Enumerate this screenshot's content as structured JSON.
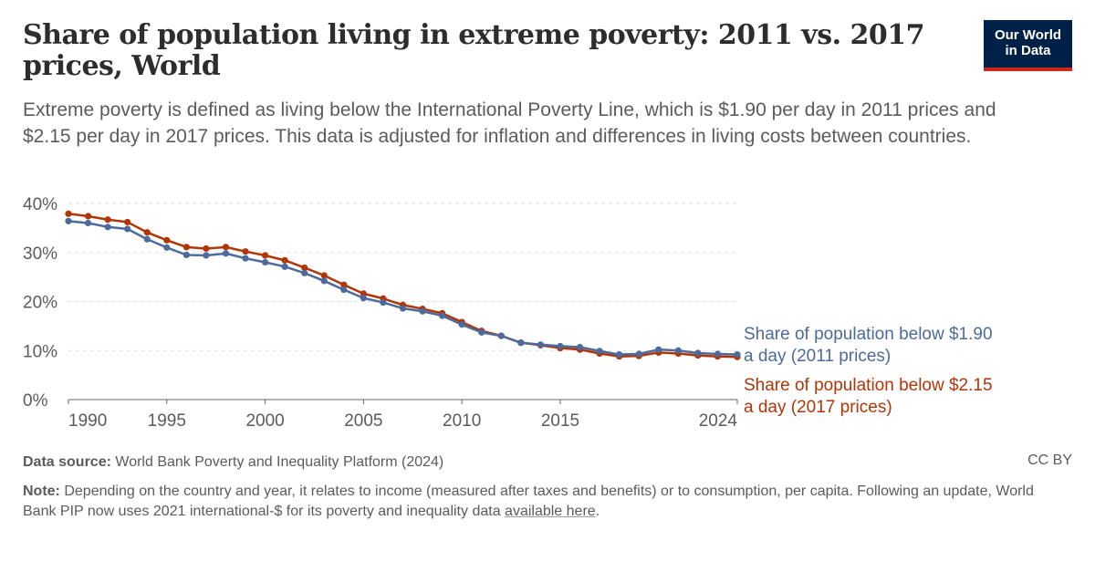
{
  "header": {
    "title": "Share of population living in extreme poverty: 2011 vs. 2017 prices, World",
    "subtitle": "Extreme poverty is defined as living below the International Poverty Line, which is $1.90 per day in 2011 prices and $2.15 per day in 2017 prices. This data is adjusted for inflation and differences in living costs between countries.",
    "logo_line1": "Our World",
    "logo_line2": "in Data"
  },
  "footer": {
    "source_label": "Data source:",
    "source_text": "World Bank Poverty and Inequality Platform (2024)",
    "license": "CC BY",
    "note_label": "Note:",
    "note_text": "Depending on the country and year, it relates to income (measured after taxes and benefits) or to consumption, per capita. Following an update, World Bank PIP now uses 2021 international-$ for its poverty and inequality data",
    "note_link": "available here",
    "note_end": "."
  },
  "chart_data": {
    "type": "line",
    "title": "Share of population living in extreme poverty: 2011 vs. 2017 prices, World",
    "xlim": [
      1990,
      2024
    ],
    "ylim": [
      0,
      40
    ],
    "x_ticks": [
      1990,
      1995,
      2000,
      2005,
      2010,
      2015,
      2024
    ],
    "y_ticks": [
      0,
      10,
      20,
      30,
      40
    ],
    "y_tick_labels": [
      "0%",
      "10%",
      "20%",
      "30%",
      "40%"
    ],
    "grid": "horizontal dashed",
    "legend_placement": "right (inline labels)",
    "colors": {
      "series_2011": "#4c6a9c",
      "series_2017": "#b13507",
      "grid": "#dddddd",
      "axis": "#666666"
    },
    "x": [
      1990,
      1991,
      1992,
      1993,
      1994,
      1995,
      1996,
      1997,
      1998,
      1999,
      2000,
      2001,
      2002,
      2003,
      2004,
      2005,
      2006,
      2007,
      2008,
      2009,
      2010,
      2011,
      2012,
      2013,
      2014,
      2015,
      2016,
      2017,
      2018,
      2019,
      2020,
      2021,
      2022,
      2023,
      2024
    ],
    "series": [
      {
        "name": "Share of population below $2.15 a day (2017 prices)",
        "color": "#b13507",
        "values": [
          37.9,
          37.4,
          36.7,
          36.2,
          34.1,
          32.5,
          31.1,
          30.8,
          31.1,
          30.2,
          29.4,
          28.4,
          26.9,
          25.3,
          23.4,
          21.6,
          20.6,
          19.3,
          18.5,
          17.6,
          15.8,
          14.0,
          13.0,
          11.6,
          11.1,
          10.5,
          10.2,
          9.4,
          8.8,
          8.9,
          9.6,
          9.4,
          9.0,
          8.8,
          8.7
        ]
      },
      {
        "name": "Share of population below $1.90 a day (2011 prices)",
        "color": "#4c6a9c",
        "values": [
          36.4,
          36.0,
          35.2,
          34.8,
          32.7,
          31.0,
          29.5,
          29.4,
          29.8,
          28.8,
          28.0,
          27.1,
          25.8,
          24.2,
          22.4,
          20.7,
          19.8,
          18.6,
          18.0,
          17.1,
          15.3,
          13.7,
          13.0,
          11.6,
          11.2,
          10.9,
          10.7,
          9.9,
          9.2,
          9.3,
          10.2,
          10.0,
          9.5,
          9.3,
          9.2
        ]
      }
    ],
    "labels": {
      "s2011_line1": "Share of population below $1.90",
      "s2011_line2": "a day (2011 prices)",
      "s2017_line1": "Share of population below $2.15",
      "s2017_line2": "a day (2017 prices)"
    }
  }
}
